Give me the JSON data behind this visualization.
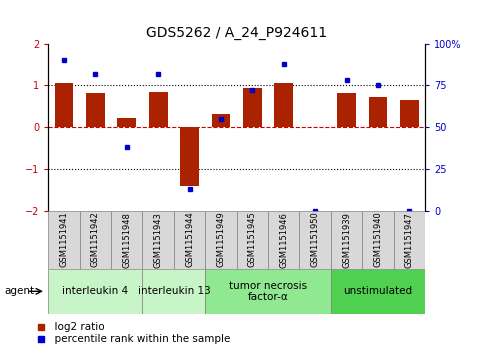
{
  "title": "GDS5262 / A_24_P924611",
  "samples": [
    "GSM1151941",
    "GSM1151942",
    "GSM1151948",
    "GSM1151943",
    "GSM1151944",
    "GSM1151949",
    "GSM1151945",
    "GSM1151946",
    "GSM1151950",
    "GSM1151939",
    "GSM1151940",
    "GSM1151947"
  ],
  "log2_ratio": [
    1.05,
    0.82,
    0.22,
    0.85,
    -1.42,
    0.32,
    0.93,
    1.05,
    0.0,
    0.82,
    0.72,
    0.65
  ],
  "percentile": [
    90,
    82,
    38,
    82,
    13,
    55,
    72,
    88,
    0,
    78,
    75,
    0
  ],
  "agents": [
    {
      "label": "interleukin 4",
      "start": 0,
      "end": 3,
      "color": "#c8f5c8"
    },
    {
      "label": "interleukin 13",
      "start": 3,
      "end": 5,
      "color": "#c8f5c8"
    },
    {
      "label": "tumor necrosis\nfactor-α",
      "start": 5,
      "end": 9,
      "color": "#90e890"
    },
    {
      "label": "unstimulated",
      "start": 9,
      "end": 12,
      "color": "#50d050"
    }
  ],
  "bar_color": "#aa2200",
  "dot_color": "#0000cc",
  "ylim_left": [
    -2,
    2
  ],
  "ylim_right": [
    0,
    100
  ],
  "yticks_left": [
    -2,
    -1,
    0,
    1,
    2
  ],
  "ytick_labels_right": [
    "0",
    "25",
    "50",
    "75",
    "100%"
  ],
  "yticks_right": [
    0,
    25,
    50,
    75,
    100
  ],
  "title_fontsize": 10,
  "tick_fontsize": 7,
  "legend_fontsize": 7.5,
  "agent_fontsize": 7.5,
  "sample_fontsize": 6
}
